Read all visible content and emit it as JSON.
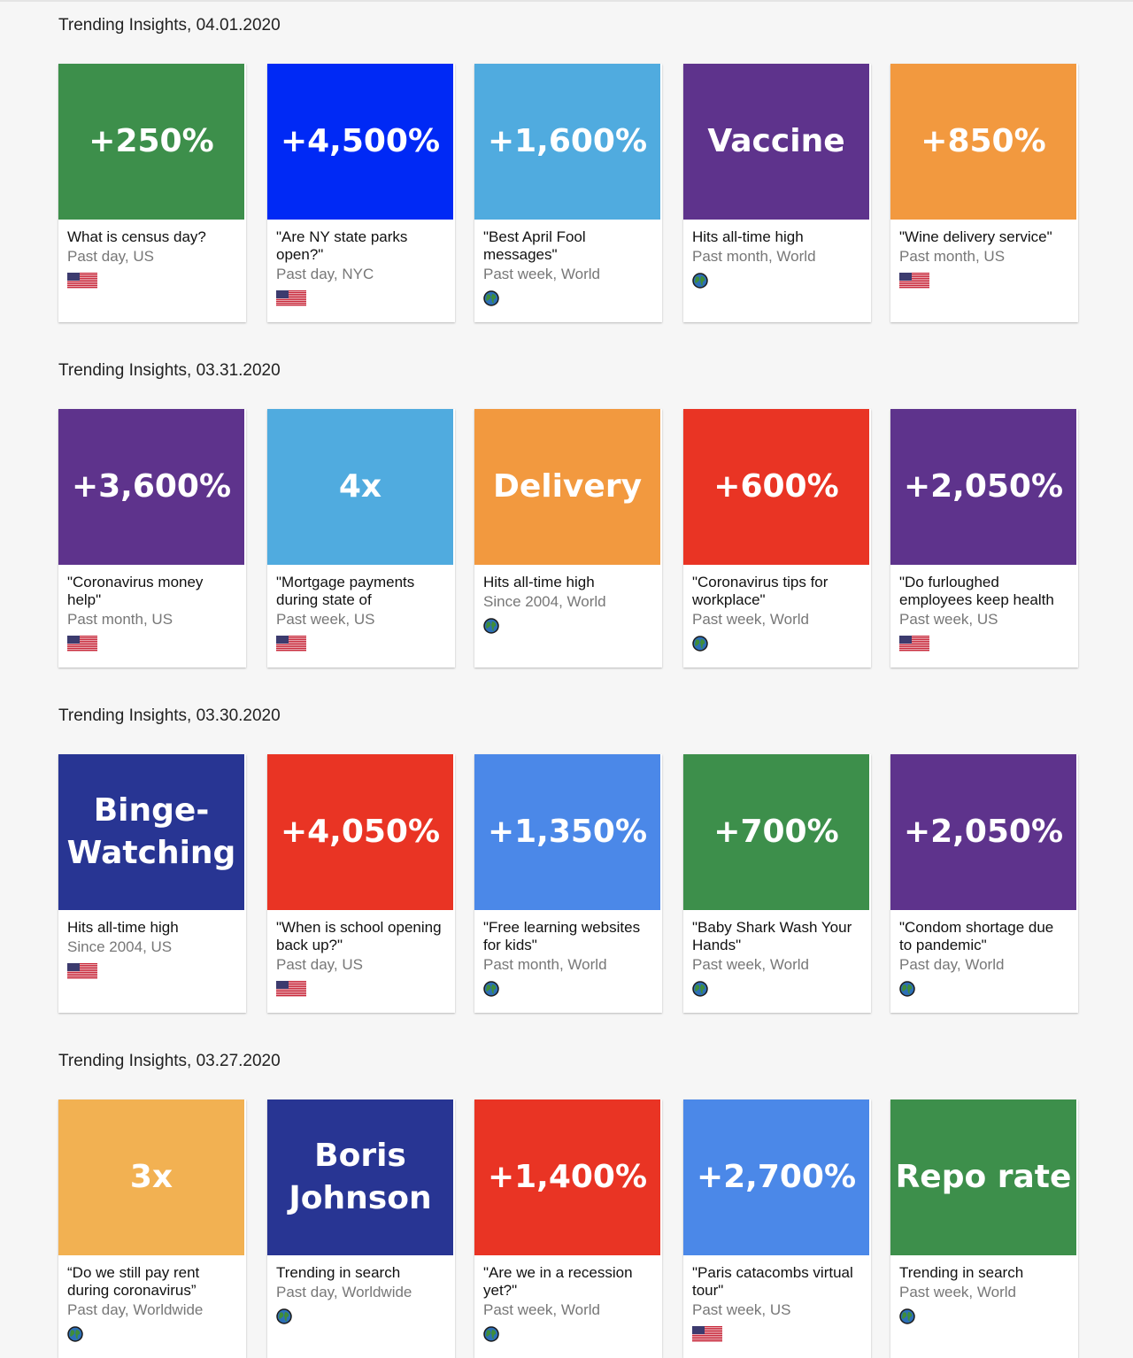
{
  "sections": [
    {
      "title": "Trending Insights, 04.01.2020",
      "cards": [
        {
          "big": "+250%",
          "color": "#3d8f4b",
          "headline": "What is census day?",
          "meta": "Past day, US",
          "flag": "us"
        },
        {
          "big": "+4,500%",
          "color": "#0029f5",
          "headline": "\"Are NY state parks open?\"",
          "meta": "Past day, NYC",
          "flag": "us"
        },
        {
          "big": "+1,600%",
          "color": "#50abdf",
          "headline": "\"Best April Fool messages\"",
          "meta": "Past week, World",
          "flag": "world"
        },
        {
          "big": "Vaccine",
          "color": "#5e338c",
          "headline": "Hits all-time high",
          "meta": "Past month, World",
          "flag": "world"
        },
        {
          "big": "+850%",
          "color": "#f2993f",
          "headline": "\"Wine delivery service\"",
          "meta": "Past month, US",
          "flag": "us"
        }
      ]
    },
    {
      "title": "Trending Insights, 03.31.2020",
      "cards": [
        {
          "big": "+3,600%",
          "color": "#5e338c",
          "headline": "\"Coronavirus money help\"",
          "meta": "Past month, US",
          "flag": "us"
        },
        {
          "big": "4x",
          "color": "#50abdf",
          "headline": "\"Mortgage payments during state of",
          "meta": "Past week, US",
          "flag": "us"
        },
        {
          "big": "Delivery",
          "color": "#f2993f",
          "headline": "Hits all-time high",
          "meta": "Since 2004, World",
          "flag": "world"
        },
        {
          "big": "+600%",
          "color": "#e93424",
          "headline": "\"Coronavirus tips for workplace\"",
          "meta": "Past week, World",
          "flag": "world"
        },
        {
          "big": "+2,050%",
          "color": "#5e338c",
          "headline": "\"Do furloughed employees keep health",
          "meta": "Past week, US",
          "flag": "us"
        }
      ]
    },
    {
      "title": "Trending Insights, 03.30.2020",
      "cards": [
        {
          "big": "Binge-Watching",
          "color": "#283593",
          "headline": "Hits all-time high",
          "meta": "Since 2004, US",
          "flag": "us"
        },
        {
          "big": "+4,050%",
          "color": "#e93424",
          "headline": "\"When is school opening back up?\"",
          "meta": "Past day, US",
          "flag": "us"
        },
        {
          "big": "+1,350%",
          "color": "#4b88e8",
          "headline": "\"Free learning websites for kids\"",
          "meta": "Past month, World",
          "flag": "world"
        },
        {
          "big": "+700%",
          "color": "#3d8f4b",
          "headline": "\"Baby Shark Wash Your Hands\"",
          "meta": "Past week, World",
          "flag": "world"
        },
        {
          "big": "+2,050%",
          "color": "#5e338c",
          "headline": "\"Condom shortage due to pandemic\"",
          "meta": "Past day, World",
          "flag": "world"
        }
      ]
    },
    {
      "title": "Trending Insights, 03.27.2020",
      "cards": [
        {
          "big": "3x",
          "color": "#f2b152",
          "headline": "“Do we still pay rent during coronavirus”",
          "meta": "Past day, Worldwide",
          "flag": "world"
        },
        {
          "big": "Boris Johnson",
          "color": "#283593",
          "headline": "Trending in search",
          "meta": "Past day, Worldwide",
          "flag": "world"
        },
        {
          "big": "+1,400%",
          "color": "#e93424",
          "headline": "\"Are we in a recession yet?\"",
          "meta": "Past week, World",
          "flag": "world"
        },
        {
          "big": "+2,700%",
          "color": "#4b88e8",
          "headline": "\"Paris catacombs virtual tour\"",
          "meta": "Past week, US",
          "flag": "us"
        },
        {
          "big": "Repo rate",
          "color": "#3d8f4b",
          "headline": "Trending in search",
          "meta": "Past week, World",
          "flag": "world"
        }
      ]
    }
  ]
}
